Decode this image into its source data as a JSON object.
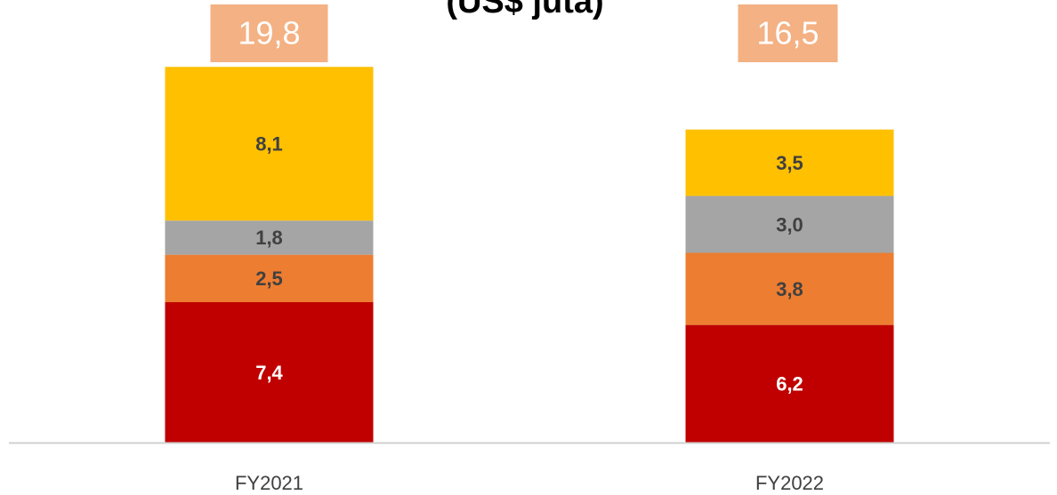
{
  "chart_data": {
    "type": "stacked_bar",
    "title": "(US$ juta)",
    "categories": [
      "FY2021",
      "FY2022"
    ],
    "series": [
      {
        "color": "#c00000",
        "values": [
          7.4,
          6.2
        ],
        "value_labels": [
          "7,4",
          "6,2"
        ]
      },
      {
        "color": "#ed7d31",
        "values": [
          2.5,
          3.8
        ],
        "value_labels": [
          "2,5",
          "3,8"
        ]
      },
      {
        "color": "#a5a5a5",
        "values": [
          1.8,
          3.0
        ],
        "value_labels": [
          "1,8",
          "3,0"
        ]
      },
      {
        "color": "#ffc000",
        "values": [
          8.1,
          3.5
        ],
        "value_labels": [
          "8,1",
          "3,5"
        ]
      }
    ],
    "totals": [
      19.8,
      16.5
    ],
    "total_labels": [
      "19,8",
      "16,5"
    ],
    "total_color": "#f4b183",
    "ylim": [
      0,
      20
    ]
  }
}
